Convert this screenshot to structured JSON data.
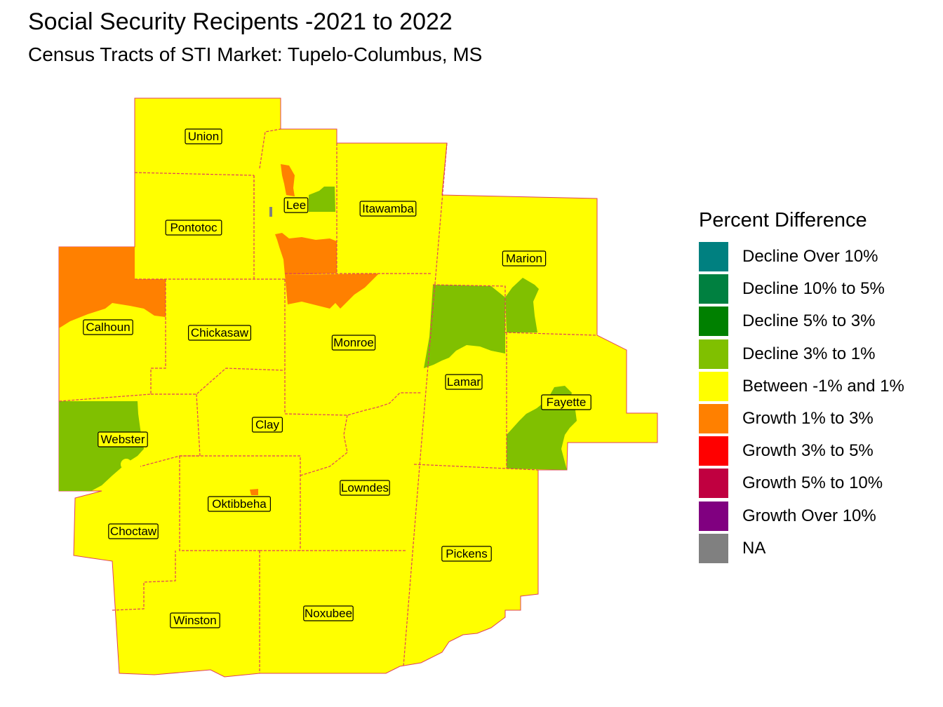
{
  "title": "Social Security Recipents -2021 to 2022",
  "subtitle": "Census Tracts of STI Market: Tupelo-Columbus, MS",
  "colors": {
    "between": "#ffff00",
    "growth_1_3": "#ff8000",
    "decline_3_1": "#80c000",
    "na": "#808080",
    "boundary": "#e0405a"
  },
  "counties": [
    {
      "name": "Union"
    },
    {
      "name": "Lee"
    },
    {
      "name": "Itawamba"
    },
    {
      "name": "Pontotoc"
    },
    {
      "name": "Marion"
    },
    {
      "name": "Calhoun"
    },
    {
      "name": "Chickasaw"
    },
    {
      "name": "Monroe"
    },
    {
      "name": "Lamar"
    },
    {
      "name": "Fayette"
    },
    {
      "name": "Clay"
    },
    {
      "name": "Webster"
    },
    {
      "name": "Lowndes"
    },
    {
      "name": "Oktibbeha"
    },
    {
      "name": "Choctaw"
    },
    {
      "name": "Pickens"
    },
    {
      "name": "Winston"
    },
    {
      "name": "Noxubee"
    }
  ],
  "legend": {
    "title": "Percent Difference",
    "items": [
      {
        "label": "Decline Over 10%",
        "color": "#008080"
      },
      {
        "label": "Decline 10% to 5%",
        "color": "#008040"
      },
      {
        "label": "Decline 5% to 3%",
        "color": "#008000"
      },
      {
        "label": "Decline 3% to 1%",
        "color": "#80c000"
      },
      {
        "label": "Between -1% and 1%",
        "color": "#ffff00"
      },
      {
        "label": "Growth 1% to 3%",
        "color": "#ff8000"
      },
      {
        "label": "Growth 3% to 5%",
        "color": "#ff0000"
      },
      {
        "label": "Growth 5% to 10%",
        "color": "#c00040"
      },
      {
        "label": "Growth Over 10%",
        "color": "#800080"
      },
      {
        "label": "NA",
        "color": "#808080"
      }
    ]
  }
}
